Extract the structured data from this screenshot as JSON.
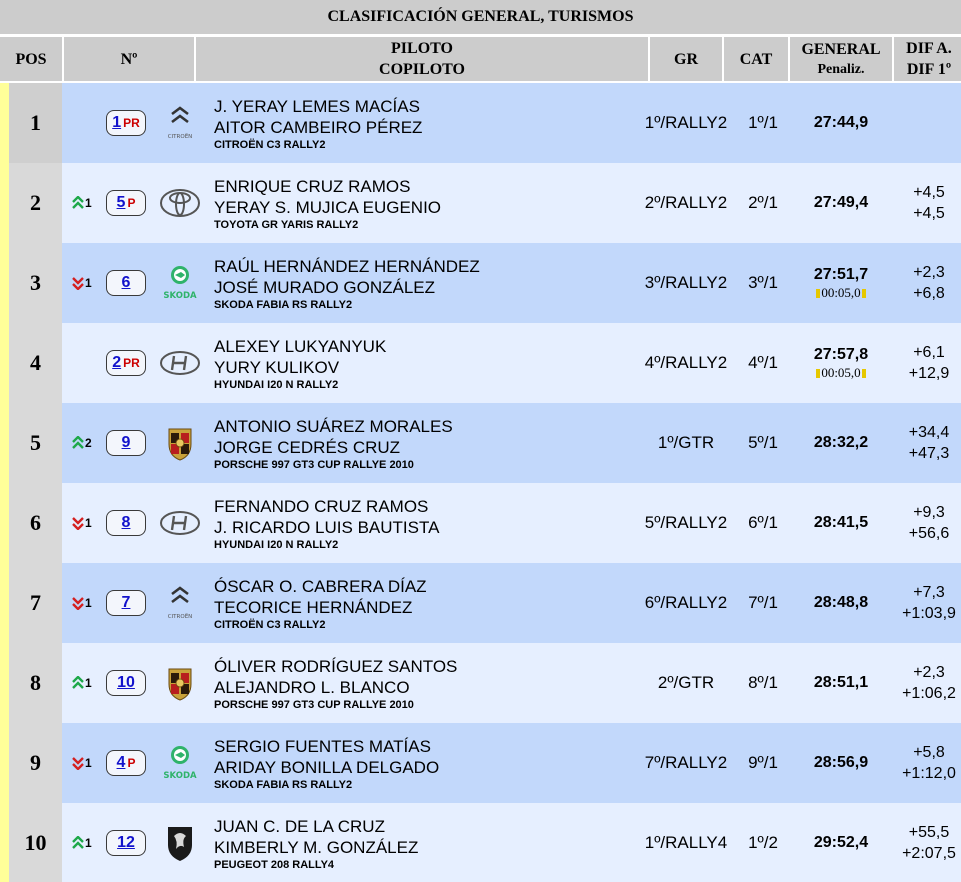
{
  "title": "CLASIFICACIÓN GENERAL, TURISMOS",
  "headers": {
    "pos": "POS",
    "num": "Nº",
    "piloto": "PILOTO",
    "copiloto": "COPILOTO",
    "gr": "GR",
    "cat": "CAT",
    "general": "GENERAL",
    "penaliz": "Penaliz.",
    "dif_a": "DIF A.",
    "dif_1": "DIF 1º"
  },
  "colors": {
    "row_odd": "#c2d8fb",
    "row_even": "#e6efff",
    "number_link": "#1212cc",
    "priority": "#cc0000",
    "up_arrow": "#1ea84a",
    "down_arrow": "#d42020",
    "leader_bar": "#ffff99"
  },
  "rows": [
    {
      "pos": "1",
      "change": "",
      "dir": "",
      "num": "1",
      "prio": "PR",
      "brand": "citroen-logo-icon",
      "brand_text": "CITROËN",
      "driver": "J. YERAY LEMES MACÍAS",
      "codriver": "AITOR CAMBEIRO PÉREZ",
      "car": "CITROËN C3 RALLY2",
      "gr": "1º/RALLY2",
      "cat": "1º/1",
      "time": "27:44,9",
      "penalty": "",
      "dif_prev": "",
      "dif_first": ""
    },
    {
      "pos": "2",
      "change": "1",
      "dir": "up",
      "num": "5",
      "prio": "P",
      "brand": "toyota-logo-icon",
      "brand_text": "",
      "driver": "ENRIQUE CRUZ RAMOS",
      "codriver": "YERAY S. MUJICA EUGENIO",
      "car": "TOYOTA GR YARIS RALLY2",
      "gr": "2º/RALLY2",
      "cat": "2º/1",
      "time": "27:49,4",
      "penalty": "",
      "dif_prev": "+4,5",
      "dif_first": "+4,5"
    },
    {
      "pos": "3",
      "change": "1",
      "dir": "down",
      "num": "6",
      "prio": "",
      "brand": "skoda-logo-icon",
      "brand_text": "SKODA",
      "driver": "RAÚL HERNÁNDEZ HERNÁNDEZ",
      "codriver": "JOSÉ MURADO GONZÁLEZ",
      "car": "SKODA FABIA RS RALLY2",
      "gr": "3º/RALLY2",
      "cat": "3º/1",
      "time": "27:51,7",
      "penalty": "00:05,0",
      "dif_prev": "+2,3",
      "dif_first": "+6,8"
    },
    {
      "pos": "4",
      "change": "",
      "dir": "",
      "num": "2",
      "prio": "PR",
      "brand": "hyundai-logo-icon",
      "brand_text": "",
      "driver": "ALEXEY LUKYANYUK",
      "codriver": "YURY KULIKOV",
      "car": "HYUNDAI I20 N RALLY2",
      "gr": "4º/RALLY2",
      "cat": "4º/1",
      "time": "27:57,8",
      "penalty": "00:05,0",
      "dif_prev": "+6,1",
      "dif_first": "+12,9"
    },
    {
      "pos": "5",
      "change": "2",
      "dir": "up",
      "num": "9",
      "prio": "",
      "brand": "porsche-logo-icon",
      "brand_text": "",
      "driver": "ANTONIO SUÁREZ MORALES",
      "codriver": "JORGE CEDRÉS CRUZ",
      "car": "PORSCHE 997 GT3 CUP RALLYE 2010",
      "gr": "1º/GTR",
      "cat": "5º/1",
      "time": "28:32,2",
      "penalty": "",
      "dif_prev": "+34,4",
      "dif_first": "+47,3"
    },
    {
      "pos": "6",
      "change": "1",
      "dir": "down",
      "num": "8",
      "prio": "",
      "brand": "hyundai-logo-icon",
      "brand_text": "",
      "driver": "FERNANDO CRUZ RAMOS",
      "codriver": "J. RICARDO LUIS BAUTISTA",
      "car": "HYUNDAI I20 N RALLY2",
      "gr": "5º/RALLY2",
      "cat": "6º/1",
      "time": "28:41,5",
      "penalty": "",
      "dif_prev": "+9,3",
      "dif_first": "+56,6"
    },
    {
      "pos": "7",
      "change": "1",
      "dir": "down",
      "num": "7",
      "prio": "",
      "brand": "citroen-logo-icon",
      "brand_text": "CITROËN",
      "driver": "ÓSCAR O. CABRERA DÍAZ",
      "codriver": "TECORICE HERNÁNDEZ",
      "car": "CITROËN C3 RALLY2",
      "gr": "6º/RALLY2",
      "cat": "7º/1",
      "time": "28:48,8",
      "penalty": "",
      "dif_prev": "+7,3",
      "dif_first": "+1:03,9"
    },
    {
      "pos": "8",
      "change": "1",
      "dir": "up",
      "num": "10",
      "prio": "",
      "brand": "porsche-logo-icon",
      "brand_text": "",
      "driver": "ÓLIVER RODRÍGUEZ SANTOS",
      "codriver": "ALEJANDRO L. BLANCO",
      "car": "PORSCHE 997 GT3 CUP RALLYE 2010",
      "gr": "2º/GTR",
      "cat": "8º/1",
      "time": "28:51,1",
      "penalty": "",
      "dif_prev": "+2,3",
      "dif_first": "+1:06,2"
    },
    {
      "pos": "9",
      "change": "1",
      "dir": "down",
      "num": "4",
      "prio": "P",
      "brand": "skoda-logo-icon",
      "brand_text": "SKODA",
      "driver": "SERGIO FUENTES MATÍAS",
      "codriver": "ARIDAY BONILLA DELGADO",
      "car": "SKODA FABIA RS RALLY2",
      "gr": "7º/RALLY2",
      "cat": "9º/1",
      "time": "28:56,9",
      "penalty": "",
      "dif_prev": "+5,8",
      "dif_first": "+1:12,0"
    },
    {
      "pos": "10",
      "change": "1",
      "dir": "up",
      "num": "12",
      "prio": "",
      "brand": "peugeot-logo-icon",
      "brand_text": "",
      "driver": "JUAN C. DE LA CRUZ",
      "codriver": "KIMBERLY M. GONZÁLEZ",
      "car": "PEUGEOT 208 RALLY4",
      "gr": "1º/RALLY4",
      "cat": "1º/2",
      "time": "29:52,4",
      "penalty": "",
      "dif_prev": "+55,5",
      "dif_first": "+2:07,5"
    }
  ]
}
